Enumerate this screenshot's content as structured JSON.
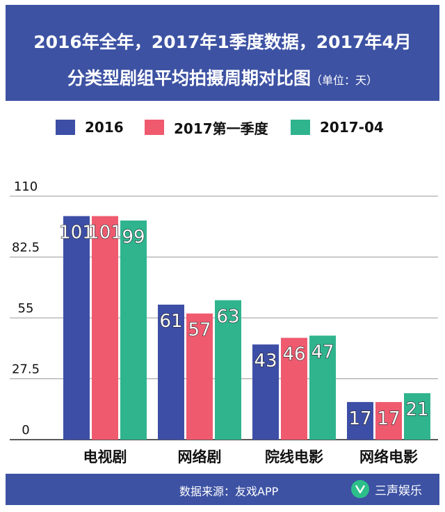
{
  "title": {
    "line1": "2016年全年，2017年1季度数据，2017年4月",
    "line2": "分类型剧组平均拍摄周期对比图",
    "unit": "（单位：天）"
  },
  "footer": {
    "source": "数据来源：友戏APP",
    "logo_text": "三声娱乐"
  },
  "colors": {
    "band": "#3d52a3",
    "series": [
      "#3d4ea6",
      "#ef5a6f",
      "#2fb48e"
    ],
    "logo": "#2dbf8a"
  },
  "chart_data": {
    "type": "bar",
    "categories": [
      "电视剧",
      "网络剧",
      "院线电影",
      "网络电影"
    ],
    "series": [
      {
        "name": "2016",
        "values": [
          101,
          61,
          43,
          17
        ]
      },
      {
        "name": "2017第一季度",
        "values": [
          101,
          57,
          46,
          17
        ]
      },
      {
        "name": "2017-04",
        "values": [
          99,
          63,
          47,
          21
        ]
      }
    ],
    "y_ticks": [
      "0",
      "27.5",
      "55",
      "82.5",
      "110"
    ],
    "ylim": [
      0,
      110
    ],
    "grid": true,
    "legend_position": "top-center",
    "data_labels": true
  }
}
